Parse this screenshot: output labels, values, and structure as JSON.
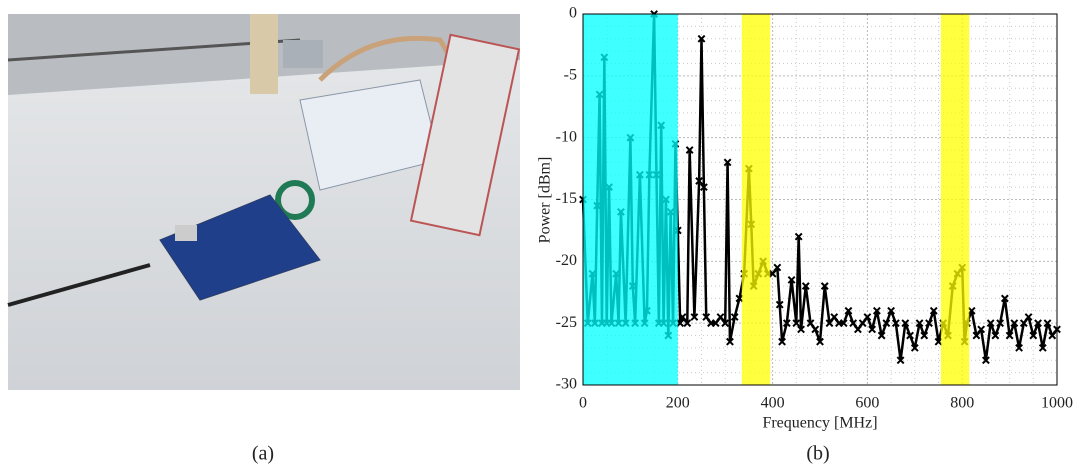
{
  "captions": [
    "(a)",
    "(b)"
  ],
  "chart_data": {
    "type": "line",
    "x_label": "Frequency [MHz]",
    "y_label": "Power [dBm]",
    "x": [
      0,
      10,
      20,
      25,
      30,
      35,
      40,
      45,
      50,
      55,
      60,
      70,
      75,
      80,
      90,
      100,
      105,
      110,
      120,
      130,
      135,
      140,
      150,
      155,
      160,
      165,
      170,
      175,
      180,
      185,
      190,
      195,
      200,
      205,
      210,
      220,
      225,
      235,
      245,
      250,
      255,
      260,
      270,
      280,
      290,
      300,
      305,
      310,
      320,
      330,
      340,
      350,
      355,
      360,
      370,
      380,
      390,
      400,
      410,
      415,
      420,
      430,
      440,
      450,
      455,
      460,
      470,
      480,
      490,
      500,
      510,
      520,
      530,
      540,
      550,
      560,
      570,
      580,
      590,
      600,
      610,
      620,
      630,
      640,
      650,
      660,
      670,
      680,
      690,
      700,
      710,
      720,
      730,
      740,
      750,
      760,
      770,
      780,
      790,
      800,
      805,
      810,
      820,
      830,
      840,
      850,
      860,
      870,
      880,
      890,
      900,
      910,
      920,
      930,
      940,
      950,
      960,
      970,
      980,
      990,
      1000
    ],
    "values": [
      -15,
      -25,
      -21,
      -25,
      -15.5,
      -6.5,
      -25,
      -3.5,
      -25,
      -14,
      -25,
      -21,
      -25,
      -16,
      -25,
      -10,
      -22,
      -25,
      -13,
      -25,
      -24,
      -13,
      0,
      -13,
      -25,
      -9,
      -25,
      -15,
      -26,
      -16,
      -25,
      -10.5,
      -17.5,
      -25,
      -24.5,
      -25,
      -11,
      -24.5,
      -13.5,
      -2,
      -14,
      -24.5,
      -25,
      -25,
      -24.5,
      -25,
      -12,
      -26.5,
      -24.5,
      -23,
      -21,
      -12.5,
      -17,
      -22,
      -21,
      -20,
      -21,
      -21,
      -20.5,
      -23.5,
      -26.5,
      -25,
      -21.5,
      -25,
      -18,
      -25.5,
      -22,
      -25,
      -25.5,
      -26.5,
      -22,
      -25,
      -24.5,
      -25,
      -25,
      -24,
      -25,
      -25.5,
      -25,
      -24.5,
      -25.5,
      -24,
      -26,
      -25,
      -24,
      -25,
      -28,
      -25,
      -26,
      -27,
      -25,
      -26,
      -25,
      -24,
      -26.5,
      -25,
      -26,
      -22,
      -21,
      -20.5,
      -26.5,
      -25,
      -24,
      -26,
      -25.5,
      -28,
      -25,
      -26,
      -25,
      -23,
      -26,
      -25,
      -27,
      -25,
      -24.5,
      -26,
      -25,
      -27,
      -25,
      -26,
      -25.5
    ],
    "color": "#000000",
    "xlim": [
      0,
      1000
    ],
    "ylim": [
      -30,
      0
    ],
    "xticks": [
      0,
      200,
      400,
      600,
      800,
      1000
    ],
    "yticks": [
      -30,
      -25,
      -20,
      -15,
      -10,
      -5,
      0
    ],
    "grid": true,
    "highlights": [
      {
        "range": [
          0,
          200
        ],
        "color": "#00ffff"
      },
      {
        "range": [
          335,
          395
        ],
        "color": "#ffff00"
      },
      {
        "range": [
          755,
          815
        ],
        "color": "#ffff00"
      }
    ],
    "highlight_opacity": 0.75
  }
}
